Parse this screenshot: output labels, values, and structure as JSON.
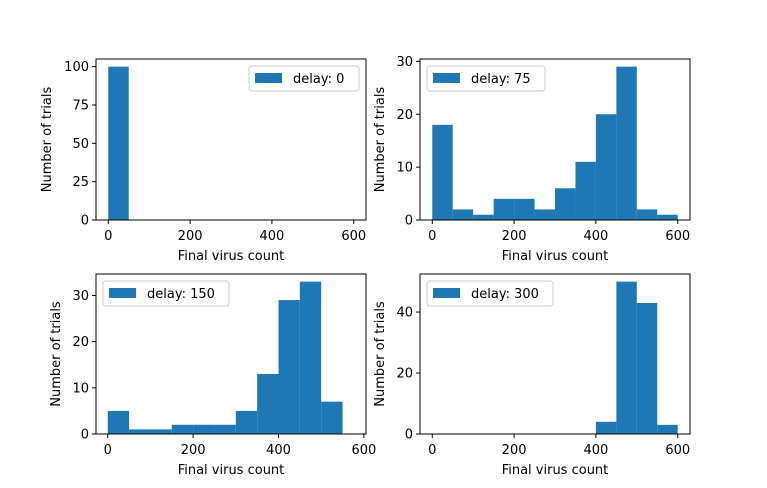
{
  "chart_data": [
    {
      "type": "bar",
      "bin_edges": [
        0,
        50,
        100,
        150,
        200,
        250,
        300,
        350,
        400,
        450,
        500,
        550,
        600
      ],
      "values": [
        100,
        0,
        0,
        0,
        0,
        0,
        0,
        0,
        0,
        0,
        0,
        0
      ],
      "legend": "delay: 0",
      "xlabel": "Final virus count",
      "ylabel": "Number of trials",
      "xlim": [
        -30,
        630
      ],
      "ylim": [
        0,
        105
      ],
      "xticks": [
        0,
        200,
        400,
        600
      ],
      "yticks": [
        0,
        25,
        50,
        75,
        100
      ],
      "legend_position": "top-right",
      "color": "#1f77b4"
    },
    {
      "type": "bar",
      "bin_edges": [
        0,
        50,
        100,
        150,
        200,
        250,
        300,
        350,
        400,
        450,
        500,
        550,
        600
      ],
      "values": [
        18,
        2,
        1,
        4,
        4,
        2,
        6,
        11,
        20,
        29,
        2,
        1
      ],
      "legend": "delay: 75",
      "xlabel": "Final virus count",
      "ylabel": "Number of trials",
      "xlim": [
        -30,
        630
      ],
      "ylim": [
        0,
        30.45
      ],
      "xticks": [
        0,
        200,
        400,
        600
      ],
      "yticks": [
        0,
        10,
        20,
        30
      ],
      "legend_position": "top-left",
      "color": "#1f77b4"
    },
    {
      "type": "bar",
      "bin_edges": [
        0,
        50,
        100,
        150,
        200,
        250,
        300,
        350,
        400,
        450,
        500,
        550
      ],
      "values": [
        5,
        1,
        1,
        2,
        2,
        2,
        5,
        13,
        29,
        33,
        7
      ],
      "legend": "delay: 150",
      "xlabel": "Final virus count",
      "ylabel": "Number of trials",
      "xlim": [
        -27.5,
        605
      ],
      "ylim": [
        0,
        34.65
      ],
      "xticks": [
        0,
        200,
        400,
        600
      ],
      "yticks": [
        0,
        10,
        20,
        30
      ],
      "legend_position": "top-left",
      "color": "#1f77b4"
    },
    {
      "type": "bar",
      "bin_edges": [
        400,
        450,
        500,
        550,
        600
      ],
      "values": [
        4,
        50,
        43,
        3
      ],
      "legend": "delay: 300",
      "xlabel": "Final virus count",
      "ylabel": "Number of trials",
      "xlim": [
        -30,
        630
      ],
      "ylim": [
        0,
        52.5
      ],
      "xticks": [
        0,
        200,
        400,
        600
      ],
      "yticks": [
        0,
        20,
        40
      ],
      "legend_position": "top-left",
      "color": "#1f77b4"
    }
  ]
}
